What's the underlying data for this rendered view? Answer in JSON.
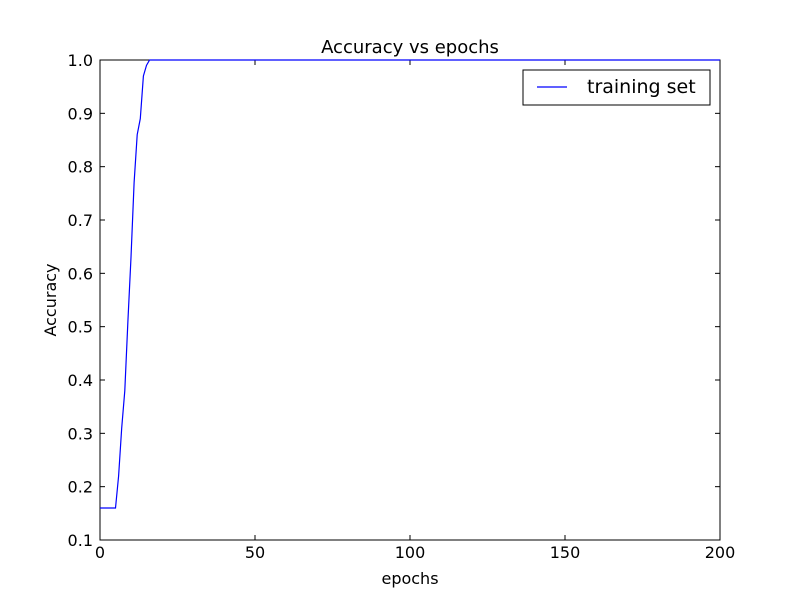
{
  "chart_data": {
    "type": "line",
    "title": "Accuracy vs epochs",
    "xlabel": "epochs",
    "ylabel": "Accuracy",
    "xlim": [
      0,
      200
    ],
    "ylim": [
      0.1,
      1.0
    ],
    "xticks": [
      0,
      50,
      100,
      150,
      200
    ],
    "yticks": [
      0.1,
      0.2,
      0.3,
      0.4,
      0.5,
      0.6,
      0.7,
      0.8,
      0.9,
      1.0
    ],
    "xtick_labels": [
      "0",
      "50",
      "100",
      "150",
      "200"
    ],
    "ytick_labels": [
      "0.1",
      "0.2",
      "0.3",
      "0.4",
      "0.5",
      "0.6",
      "0.7",
      "0.8",
      "0.9",
      "1.0"
    ],
    "grid": false,
    "legend_position": "top-right",
    "series": [
      {
        "name": "training set",
        "color": "#0000ff",
        "x": [
          0,
          1,
          2,
          3,
          4,
          5,
          6,
          7,
          8,
          9,
          10,
          11,
          12,
          13,
          14,
          15,
          16,
          17,
          18,
          19,
          20,
          25,
          30,
          40,
          50,
          60,
          70,
          80,
          90,
          100,
          110,
          120,
          130,
          140,
          150,
          160,
          170,
          180,
          190,
          200
        ],
        "y": [
          0.16,
          0.16,
          0.16,
          0.16,
          0.16,
          0.16,
          0.22,
          0.31,
          0.38,
          0.51,
          0.63,
          0.77,
          0.86,
          0.89,
          0.97,
          0.99,
          1.0,
          1.0,
          1.0,
          1.0,
          1.0,
          1.0,
          1.0,
          1.0,
          1.0,
          1.0,
          1.0,
          1.0,
          1.0,
          1.0,
          1.0,
          1.0,
          1.0,
          1.0,
          1.0,
          1.0,
          1.0,
          1.0,
          1.0,
          1.0
        ]
      }
    ]
  }
}
